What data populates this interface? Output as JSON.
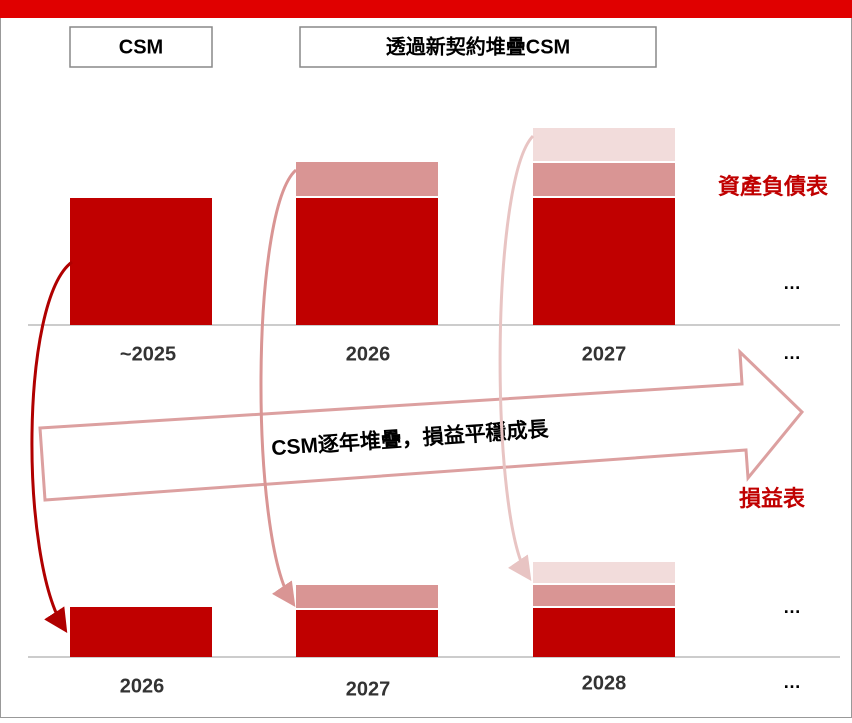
{
  "header": {
    "left_box": "CSM",
    "right_box": "透過新契約堆疊CSM"
  },
  "balance_sheet": {
    "label": "資產負債表",
    "years": [
      "~2025",
      "2026",
      "2027"
    ],
    "ellipsis": "…",
    "ellipsis_axis": "…"
  },
  "arrow": {
    "text": "CSM逐年堆疊，損益平穩成長"
  },
  "income_statement": {
    "label": "損益表",
    "years": [
      "2026",
      "2027",
      "2028"
    ],
    "ellipsis": "…",
    "ellipsis_axis": "…"
  }
}
